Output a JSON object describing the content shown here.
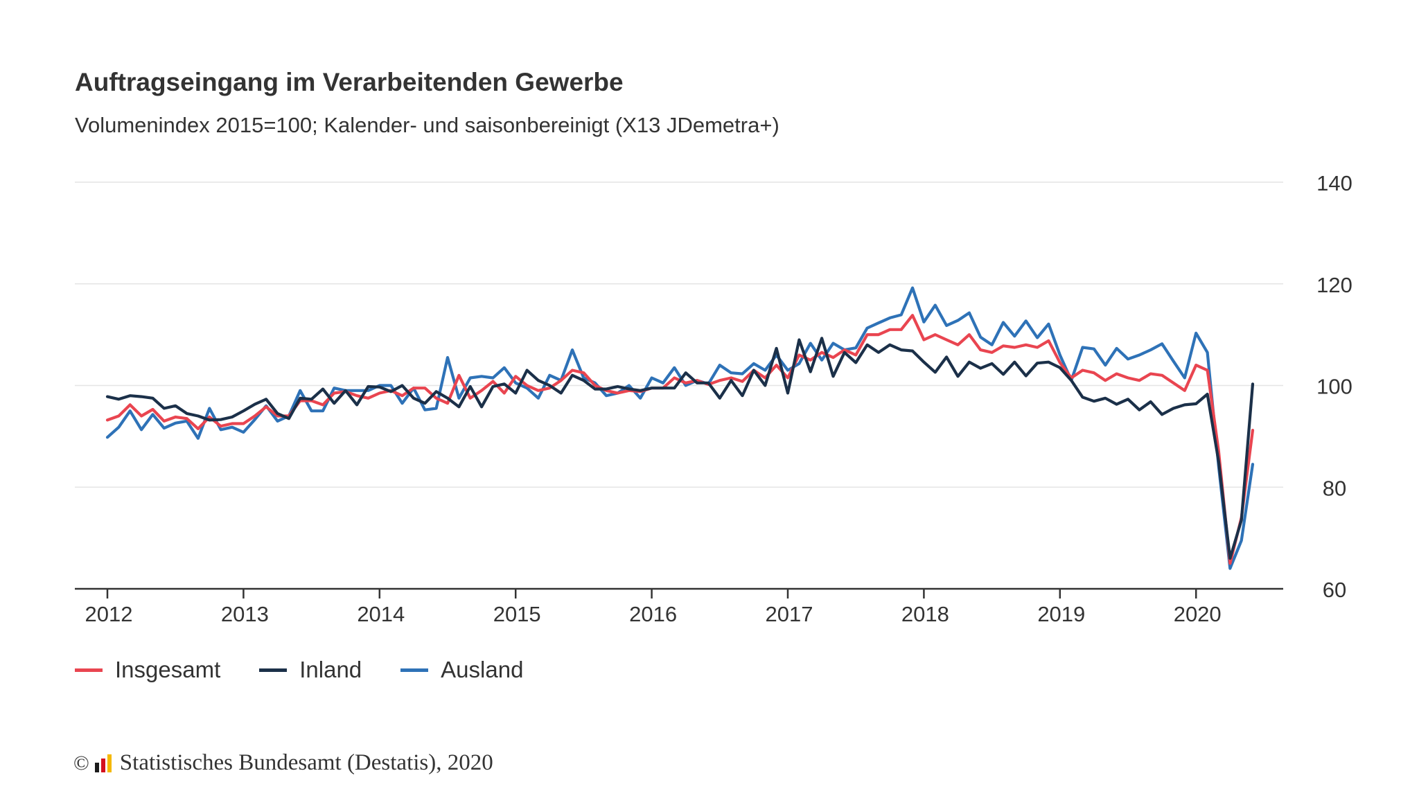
{
  "chart_data": {
    "type": "line",
    "title": "Auftragseingang im Verarbeitenden Gewerbe",
    "subtitle": "Volumenindex 2015=100; Kalender- und saisonbereinigt (X13 JDemetra+)",
    "xlabel": "",
    "ylabel": "",
    "x_start": "2012-01",
    "x_ticks": [
      "2012",
      "2013",
      "2014",
      "2015",
      "2016",
      "2017",
      "2018",
      "2019",
      "2020"
    ],
    "y_ticks": [
      60,
      80,
      100,
      120,
      140
    ],
    "ylim": [
      60,
      140
    ],
    "grid": true,
    "legend_position": "bottom-left",
    "series": [
      {
        "name": "Insgesamt",
        "color": "#e94550",
        "values": [
          93.2,
          94.0,
          96.2,
          94.0,
          95.3,
          93.0,
          93.8,
          93.5,
          91.5,
          93.8,
          92.0,
          92.5,
          92.5,
          94.0,
          95.8,
          94.0,
          94.0,
          97.0,
          97.0,
          96.2,
          98.5,
          98.8,
          98.0,
          97.5,
          98.5,
          99.0,
          98.0,
          99.5,
          99.5,
          97.5,
          96.5,
          102.0,
          97.5,
          99.0,
          100.8,
          98.5,
          101.8,
          100.0,
          99.0,
          99.5,
          101.0,
          103.0,
          102.5,
          100.0,
          99.0,
          98.5,
          99.0,
          98.8,
          99.5,
          99.5,
          101.5,
          100.5,
          101.0,
          100.2,
          101.0,
          101.5,
          100.8,
          103.0,
          101.5,
          104.0,
          101.5,
          106.0,
          105.0,
          106.5,
          105.5,
          107.0,
          106.0,
          110.0,
          110.0,
          111.0,
          111.0,
          113.8,
          109.0,
          110.0,
          109.0,
          108.0,
          110.0,
          107.0,
          106.5,
          107.8,
          107.5,
          108.0,
          107.5,
          108.8,
          104.5,
          101.5,
          103.0,
          102.5,
          101.0,
          102.3,
          101.5,
          101.0,
          102.3,
          102.0,
          100.5,
          99.0,
          104.0,
          103.0,
          87.0,
          65.0,
          74.0,
          91.2
        ]
      },
      {
        "name": "Inland",
        "color": "#1b3049",
        "values": [
          97.8,
          97.3,
          98.0,
          97.8,
          97.5,
          95.5,
          96.0,
          94.5,
          94.0,
          93.2,
          93.3,
          93.8,
          95.0,
          96.3,
          97.3,
          94.5,
          93.5,
          97.5,
          97.3,
          99.3,
          96.5,
          99.0,
          96.2,
          99.8,
          99.7,
          98.8,
          100.0,
          97.5,
          96.5,
          98.8,
          97.5,
          95.8,
          99.8,
          95.8,
          99.8,
          100.3,
          98.5,
          103.0,
          101.0,
          100.0,
          98.5,
          102.0,
          101.0,
          99.3,
          99.3,
          99.8,
          99.3,
          99.0,
          99.5,
          99.5,
          99.5,
          102.5,
          100.5,
          100.5,
          97.5,
          101.0,
          98.0,
          103.0,
          100.0,
          107.3,
          98.5,
          109.0,
          102.7,
          109.3,
          101.8,
          106.5,
          104.5,
          108.0,
          106.5,
          108.0,
          107.0,
          106.8,
          104.6,
          102.6,
          105.6,
          101.8,
          104.6,
          103.4,
          104.3,
          102.2,
          104.6,
          101.9,
          104.4,
          104.6,
          103.5,
          101.0,
          97.7,
          96.9,
          97.5,
          96.3,
          97.3,
          95.2,
          96.8,
          94.3,
          95.5,
          96.2,
          96.4,
          98.3,
          85.0,
          66.0,
          73.5,
          100.3
        ]
      },
      {
        "name": "Ausland",
        "color": "#2e72b7",
        "values": [
          89.8,
          91.8,
          95.0,
          91.3,
          94.3,
          91.6,
          92.6,
          93.0,
          89.6,
          95.5,
          91.3,
          91.8,
          90.8,
          93.3,
          96.0,
          93.0,
          94.0,
          99.0,
          95.0,
          95.0,
          99.5,
          99.0,
          99.0,
          99.0,
          100.0,
          100.0,
          96.5,
          99.5,
          95.2,
          95.5,
          105.5,
          97.5,
          101.5,
          101.8,
          101.5,
          103.5,
          100.5,
          99.5,
          97.5,
          102.0,
          101.0,
          107.0,
          101.5,
          100.5,
          98.0,
          98.5,
          100.0,
          97.5,
          101.5,
          100.5,
          103.5,
          100.0,
          101.0,
          100.3,
          104.0,
          102.5,
          102.3,
          104.3,
          103.0,
          106.0,
          103.0,
          104.3,
          108.3,
          105.0,
          108.3,
          107.0,
          107.4,
          111.3,
          112.3,
          113.3,
          113.9,
          119.2,
          112.5,
          115.8,
          111.8,
          112.8,
          114.3,
          109.5,
          108.0,
          112.4,
          109.7,
          112.7,
          109.4,
          112.1,
          106.0,
          101.0,
          107.5,
          107.2,
          104.0,
          107.3,
          105.2,
          106.0,
          107.0,
          108.2,
          104.8,
          101.5,
          110.3,
          106.5,
          84.0,
          64.0,
          69.5,
          84.5
        ]
      }
    ]
  },
  "footer": {
    "copyright_symbol": "©",
    "source": "Statistisches Bundesamt (Destatis), 2020",
    "logo_colors": [
      "#1b1b1b",
      "#d4111f",
      "#f5b800"
    ]
  }
}
